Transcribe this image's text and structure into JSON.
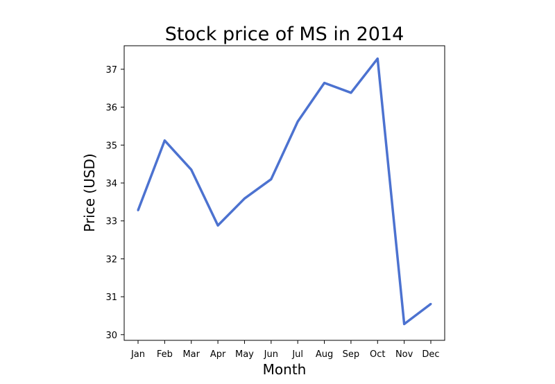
{
  "chart_data": {
    "type": "line",
    "title": "Stock price of MS in 2014",
    "xlabel": "Month",
    "ylabel": "Price (USD)",
    "categories": [
      "Jan",
      "Feb",
      "Mar",
      "Apr",
      "May",
      "Jun",
      "Jul",
      "Aug",
      "Sep",
      "Oct",
      "Nov",
      "Dec"
    ],
    "series": [
      {
        "name": "MS",
        "values": [
          33.28,
          35.12,
          34.35,
          32.88,
          33.59,
          34.1,
          35.62,
          36.64,
          36.38,
          37.28,
          30.28,
          30.81
        ],
        "color": "#4c72d0"
      }
    ],
    "ylim": [
      29.85,
      37.62
    ],
    "yticks": [
      30,
      31,
      32,
      33,
      34,
      35,
      36,
      37
    ],
    "grid": false,
    "legend": "none"
  }
}
